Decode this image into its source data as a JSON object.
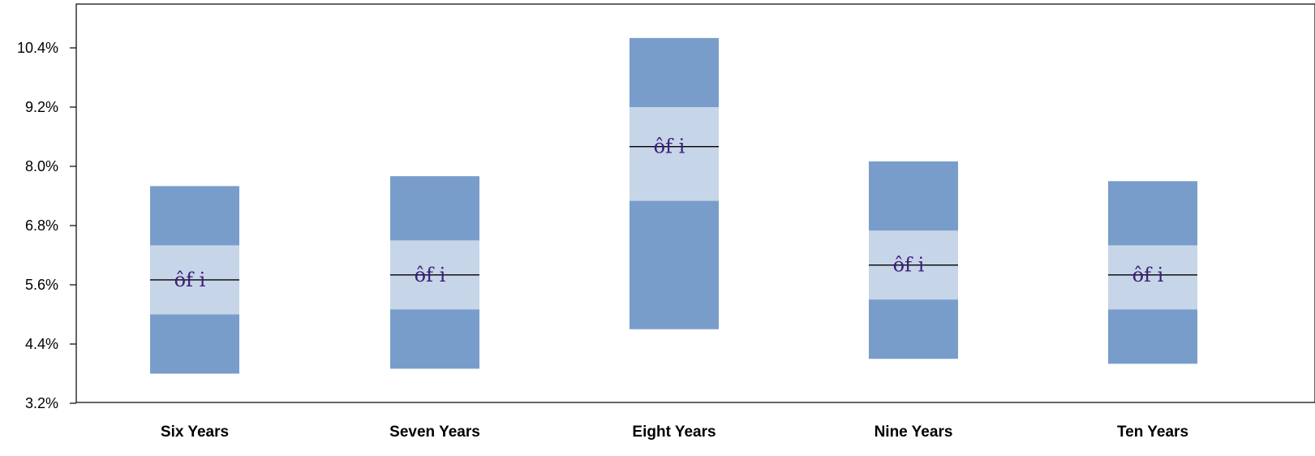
{
  "chart_data": {
    "type": "bar",
    "categories": [
      "Six Years",
      "Seven Years",
      "Eight Years",
      "Nine Years",
      "Ten Years"
    ],
    "series": [
      {
        "outer_low": [
          3.8,
          3.9,
          4.7,
          4.1,
          4.0
        ],
        "inner_low": [
          5.0,
          5.1,
          7.3,
          5.3,
          5.1
        ],
        "median": [
          5.7,
          5.8,
          8.4,
          6.0,
          5.8
        ],
        "inner_high": [
          6.4,
          6.5,
          9.2,
          6.7,
          6.4
        ],
        "outer_high": [
          7.6,
          7.8,
          10.6,
          8.1,
          7.7
        ]
      }
    ],
    "annotations": [
      "ôf i",
      "ôf i",
      "ôf i",
      "ôf i",
      "ôf i"
    ],
    "yticks": [
      "3.2%",
      "4.4%",
      "5.6%",
      "6.8%",
      "8.0%",
      "9.2%",
      "10.4%"
    ],
    "ytick_values": [
      3.2,
      4.4,
      5.6,
      6.8,
      8.0,
      9.2,
      10.4
    ],
    "ylim": [
      3.2,
      11.2
    ],
    "grid": false,
    "colors": {
      "outer_band": "#789dca",
      "inner_band": "#c6d5e8",
      "median_line": "#000000",
      "annotation": "#3d1c7a",
      "axis": "#000000"
    }
  }
}
